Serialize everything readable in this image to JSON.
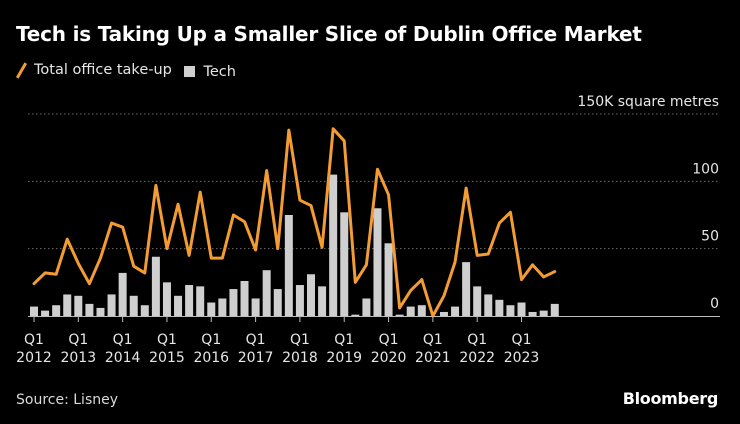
{
  "header": {
    "title": "Tech is Taking Up a Smaller Slice of Dublin Office Market"
  },
  "legend": {
    "line_label": "Total office take-up",
    "bar_label": "Tech"
  },
  "footer": {
    "source": "Source: Lisney",
    "brand": "Bloomberg"
  },
  "colors": {
    "line": "#f39c34",
    "bars": "#cfcfcf",
    "grid": "#6b6b6b",
    "background": "#000000"
  },
  "chart_data": {
    "type": "bar+line",
    "title": "Tech is Taking Up a Smaller Slice of Dublin Office Market",
    "unit_label": "150K square metres",
    "ylim": [
      0,
      150
    ],
    "yticks": [
      0,
      50,
      100,
      150
    ],
    "ytick_labels": [
      "0",
      "50",
      "100",
      "150K square metres"
    ],
    "grid": true,
    "legend_position": "top-left",
    "x_quarter_labels": [
      {
        "index": 0,
        "q": "Q1",
        "year": "2012"
      },
      {
        "index": 4,
        "q": "Q1",
        "year": "2013"
      },
      {
        "index": 8,
        "q": "Q1",
        "year": "2014"
      },
      {
        "index": 12,
        "q": "Q1",
        "year": "2015"
      },
      {
        "index": 16,
        "q": "Q1",
        "year": "2016"
      },
      {
        "index": 20,
        "q": "Q1",
        "year": "2017"
      },
      {
        "index": 24,
        "q": "Q1",
        "year": "2018"
      },
      {
        "index": 28,
        "q": "Q1",
        "year": "2019"
      },
      {
        "index": 32,
        "q": "Q1",
        "year": "2020"
      },
      {
        "index": 36,
        "q": "Q1",
        "year": "2021"
      },
      {
        "index": 40,
        "q": "Q1",
        "year": "2022"
      },
      {
        "index": 44,
        "q": "Q1",
        "year": "2023"
      }
    ],
    "series": [
      {
        "name": "Total office take-up",
        "kind": "line",
        "values": [
          24,
          32,
          31,
          57,
          39,
          24,
          43,
          69,
          66,
          37,
          32,
          97,
          50,
          83,
          45,
          92,
          43,
          43,
          75,
          70,
          49,
          108,
          50,
          138,
          86,
          82,
          51,
          139,
          130,
          25,
          38,
          109,
          90,
          6,
          19,
          27,
          0,
          15,
          40,
          95,
          45,
          46,
          69,
          77,
          27,
          38,
          29,
          33
        ]
      },
      {
        "name": "Tech",
        "kind": "bar",
        "values": [
          7,
          4,
          8,
          16,
          15,
          9,
          6,
          16,
          32,
          15,
          8,
          44,
          25,
          15,
          23,
          22,
          10,
          13,
          20,
          26,
          13,
          34,
          20,
          75,
          23,
          31,
          22,
          105,
          77,
          1,
          13,
          80,
          54,
          1,
          7,
          8,
          0,
          3,
          7,
          40,
          22,
          16,
          12,
          8,
          10,
          3,
          4,
          9
        ]
      }
    ]
  }
}
